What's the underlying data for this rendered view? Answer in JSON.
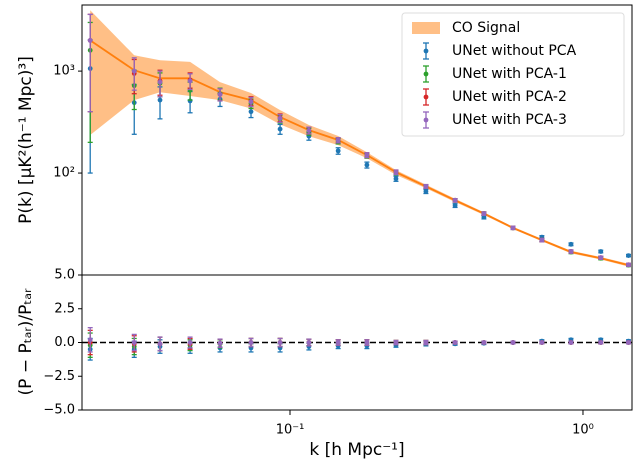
{
  "chart_data": [
    {
      "type": "errorbar",
      "y_label": "P(k) [μK²(h⁻¹ Mpc)³]",
      "x": [
        0.0208,
        0.0294,
        0.036,
        0.0456,
        0.0577,
        0.0736,
        0.0925,
        0.116,
        0.146,
        0.183,
        0.23,
        0.291,
        0.366,
        0.459,
        0.577,
        0.724,
        0.91,
        1.15,
        1.43
      ],
      "ylim": [
        10,
        4450
      ],
      "ylog": true,
      "xlog": true,
      "yticks": [
        {
          "value": 100,
          "label": "10²"
        },
        {
          "value": 1000,
          "label": "10³"
        }
      ],
      "legend": "upper right",
      "series": [
        {
          "name": "CO Signal",
          "color": "#ff7f0e",
          "values": [
            2000,
            1020,
            850,
            850,
            622,
            520,
            354,
            264,
            211,
            150,
            102,
            74,
            54,
            40,
            29,
            22,
            16.8,
            14.6,
            12.5
          ],
          "lower": [
            236,
            520,
            620,
            570,
            520,
            430,
            300,
            230,
            188,
            140,
            96,
            71,
            52,
            38.8,
            28.2,
            21.4,
            16.3,
            14.2,
            12.1
          ],
          "upper": [
            3960,
            1430,
            1280,
            1230,
            780,
            610,
            414,
            296,
            231,
            160,
            107,
            77,
            56,
            41.2,
            29.8,
            22.6,
            17.3,
            15,
            12.9
          ]
        },
        {
          "name": "UNet without PCA",
          "color": "#1f77b4",
          "values": [
            1060,
            490,
            520,
            510,
            530,
            400,
            270,
            230,
            165,
            120,
            88,
            66,
            48,
            37,
            29,
            23.5,
            20,
            17,
            15.5
          ],
          "errors": [
            960,
            250,
            180,
            120,
            80,
            50,
            30,
            20,
            12,
            8,
            5,
            3,
            2,
            1.5,
            1,
            0.8,
            0.6,
            0.5,
            0.4
          ]
        },
        {
          "name": "UNet with PCA-1",
          "color": "#2ca02c",
          "values": [
            1600,
            720,
            760,
            650,
            600,
            480,
            340,
            255,
            205,
            148,
            101,
            74,
            54,
            40,
            29,
            22,
            16.8,
            14.6,
            12.5
          ],
          "errors": [
            1400,
            300,
            200,
            130,
            80,
            50,
            30,
            20,
            12,
            8,
            5,
            3,
            2,
            1.5,
            1,
            0.8,
            0.6,
            0.5,
            0.4
          ]
        },
        {
          "name": "UNet with PCA-2",
          "color": "#d62728",
          "values": [
            2000,
            950,
            800,
            820,
            590,
            510,
            350,
            262,
            210,
            150,
            102,
            74,
            54,
            40,
            29,
            22,
            17,
            14.8,
            12.6
          ],
          "errors": [
            1600,
            350,
            220,
            140,
            80,
            50,
            30,
            20,
            12,
            8,
            5,
            3,
            2,
            1.5,
            1,
            0.8,
            0.6,
            0.5,
            0.4
          ]
        },
        {
          "name": "UNet with PCA-3",
          "color": "#9467bd",
          "values": [
            2000,
            1000,
            780,
            800,
            590,
            500,
            345,
            262,
            210,
            150,
            102,
            74,
            54,
            40,
            29,
            22,
            17,
            14.8,
            12.6
          ],
          "errors": [
            1600,
            350,
            220,
            140,
            80,
            50,
            30,
            20,
            12,
            8,
            5,
            3,
            2,
            1.5,
            1,
            0.8,
            0.6,
            0.5,
            0.4
          ]
        }
      ]
    },
    {
      "type": "errorbar",
      "y_label": "(P − Pₜₐᵣ)/Pₜₐᵣ",
      "x_label": "k [h Mpc⁻¹]",
      "xlim": [
        0.0195,
        1.47
      ],
      "xlog": true,
      "xticks": [
        {
          "value": 0.1,
          "label": "10⁻¹"
        },
        {
          "value": 1,
          "label": "10⁰"
        }
      ],
      "ylim": [
        -5,
        5
      ],
      "yticks": [
        {
          "value": -5,
          "label": "−5.0"
        },
        {
          "value": -2.5,
          "label": "−2.5"
        },
        {
          "value": 0,
          "label": "0.0"
        },
        {
          "value": 2.5,
          "label": "2.5"
        },
        {
          "value": 5,
          "label": "5.0"
        }
      ],
      "hline": 0,
      "series": [
        {
          "color": "#1f77b4",
          "values": [
            -0.5,
            -0.5,
            -0.3,
            -0.4,
            -0.4,
            -0.4,
            -0.4,
            -0.3,
            -0.25,
            -0.25,
            -0.2,
            -0.1,
            -0.1,
            -0.05,
            0,
            0.1,
            0.2,
            0.2,
            0.1
          ],
          "errors": [
            0.8,
            0.6,
            0.5,
            0.4,
            0.3,
            0.3,
            0.3,
            0.25,
            0.2,
            0.2,
            0.15,
            0.15,
            0.1,
            0.1,
            0.1,
            0.1,
            0.1,
            0.1,
            0.1
          ]
        },
        {
          "color": "#2ca02c",
          "values": [
            -0.2,
            -0.3,
            -0.1,
            -0.2,
            -0.1,
            0,
            0,
            0,
            0,
            0,
            0,
            0,
            0,
            0,
            0,
            0,
            0,
            0,
            0
          ],
          "errors": [
            0.9,
            0.6,
            0.5,
            0.4,
            0.3,
            0.3,
            0.3,
            0.25,
            0.2,
            0.2,
            0.15,
            0.15,
            0.1,
            0.1,
            0.1,
            0.1,
            0.1,
            0.1,
            0.1
          ]
        },
        {
          "color": "#d62728",
          "values": [
            0,
            -0.1,
            -0.1,
            -0.1,
            -0.05,
            0,
            0,
            0,
            0,
            0,
            0,
            0,
            0,
            0,
            0,
            0,
            0,
            0,
            0
          ],
          "errors": [
            0.9,
            0.6,
            0.5,
            0.4,
            0.3,
            0.3,
            0.3,
            0.25,
            0.2,
            0.2,
            0.15,
            0.15,
            0.1,
            0.1,
            0.1,
            0.1,
            0.1,
            0.1,
            0.1
          ]
        },
        {
          "color": "#9467bd",
          "values": [
            0.2,
            0,
            -0.1,
            0,
            -0.05,
            0,
            0,
            0,
            0,
            0,
            0,
            0,
            0,
            0,
            0,
            0,
            0,
            0,
            0
          ],
          "errors": [
            0.9,
            0.6,
            0.5,
            0.4,
            0.3,
            0.3,
            0.3,
            0.25,
            0.2,
            0.2,
            0.15,
            0.15,
            0.1,
            0.1,
            0.1,
            0.1,
            0.1,
            0.1,
            0.1
          ]
        }
      ]
    }
  ]
}
